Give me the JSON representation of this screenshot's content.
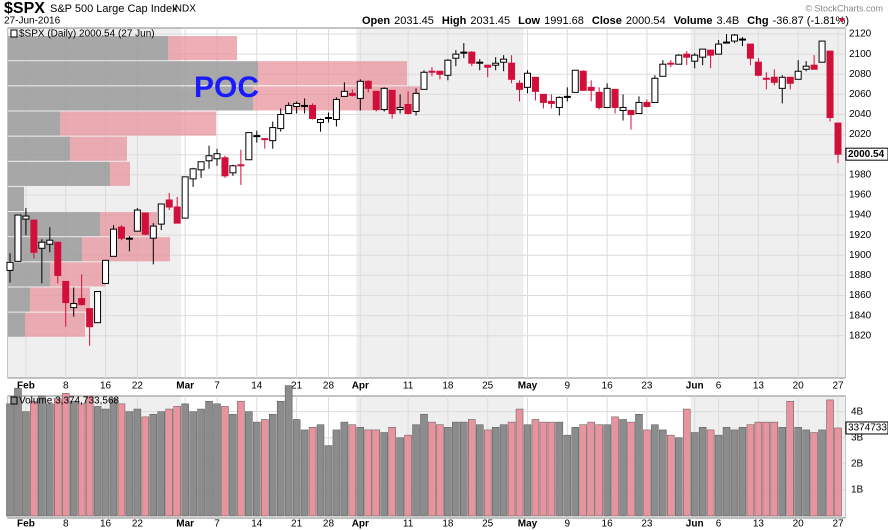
{
  "header": {
    "symbol": "$SPX",
    "name": "S&P 500 Large Cap Index",
    "exchange": "INDX",
    "date": "27-Jun-2016",
    "quote": [
      {
        "label": "Open",
        "value": "2031.45"
      },
      {
        "label": "High",
        "value": "2031.45"
      },
      {
        "label": "Low",
        "value": "1991.68"
      },
      {
        "label": "Close",
        "value": "2000.54"
      },
      {
        "label": "Volume",
        "value": "3.4B"
      },
      {
        "label": "Chg",
        "value": "-36.87 (-1.81%)"
      }
    ],
    "credit": "© StockCharts.com"
  },
  "chart_data": {
    "type": "candlestick",
    "title": "$SPX (Daily) 2000.54 (27 Jun)",
    "annotation": "POC",
    "price_tag": "2000.54",
    "categories": [
      null,
      null,
      "Feb",
      null,
      null,
      null,
      null,
      "8",
      null,
      null,
      null,
      null,
      "16",
      null,
      null,
      null,
      "22",
      null,
      null,
      null,
      null,
      null,
      "Mar",
      null,
      null,
      null,
      "7",
      null,
      null,
      null,
      null,
      "14",
      null,
      null,
      null,
      null,
      "21",
      null,
      null,
      null,
      "28",
      null,
      null,
      null,
      "Apr",
      null,
      null,
      null,
      null,
      null,
      "11",
      null,
      null,
      null,
      null,
      "18",
      null,
      null,
      null,
      null,
      "25",
      null,
      null,
      null,
      null,
      "May",
      null,
      null,
      null,
      null,
      "9",
      null,
      null,
      null,
      null,
      "16",
      null,
      null,
      null,
      null,
      "23",
      null,
      null,
      null,
      null,
      null,
      "Jun",
      null,
      null,
      "6",
      null,
      null,
      null,
      null,
      "13",
      null,
      null,
      null,
      null,
      "20",
      null,
      null,
      null,
      null,
      "27"
    ],
    "open": [
      1885,
      1894,
      1936,
      1935,
      1907,
      1911,
      1913,
      1874,
      1848,
      1857,
      1847,
      1833,
      1872,
      1899,
      1928,
      1916,
      1924,
      1942,
      1917,
      1931,
      1955,
      1948,
      1937,
      1976,
      1985,
      1994,
      1996,
      1997,
      1982,
      1990,
      1995,
      2018,
      2016,
      2014,
      2026,
      2041,
      2048,
      2049,
      2049,
      2032,
      2037,
      2035,
      2058,
      2061,
      2056,
      2073,
      2063,
      2045,
      2064,
      2045,
      2050,
      2043,
      2065,
      2083,
      2083,
      2079,
      2096,
      2101,
      2102,
      2092,
      2089,
      2089,
      2092,
      2091,
      2071,
      2067,
      2077,
      2060,
      2053,
      2047,
      2057,
      2062,
      2083,
      2067,
      2062,
      2047,
      2065,
      2044,
      2044,
      2041,
      2052,
      2052,
      2078,
      2091,
      2090,
      2100,
      2093,
      2097,
      2104,
      2100,
      2111,
      2113,
      2115,
      2110,
      2092,
      2076,
      2077,
      2066,
      2077,
      2075,
      2085,
      2089,
      2092,
      2103,
      2031.45
    ],
    "high": [
      1902,
      1940,
      1947,
      1935,
      1916,
      1928,
      1913,
      1874,
      1868,
      1881,
      1847,
      1864,
      1895,
      1930,
      1930,
      1919,
      1947,
      1942,
      1932,
      1951,
      1962,
      1958,
      1978,
      1987,
      1993,
      2009,
      2006,
      1999,
      1990,
      2005,
      2022,
      2024,
      2016,
      2033,
      2046,
      2052,
      2053,
      2056,
      2051,
      2036,
      2042,
      2057,
      2072,
      2065,
      2075,
      2074,
      2063,
      2067,
      2064,
      2060,
      2063,
      2066,
      2084,
      2087,
      2083,
      2095,
      2104,
      2111,
      2103,
      2095,
      2089,
      2097,
      2099,
      2099,
      2074,
      2084,
      2077,
      2060,
      2060,
      2058,
      2067,
      2084,
      2084,
      2074,
      2067,
      2071,
      2065,
      2060,
      2044,
      2058,
      2055,
      2079,
      2094,
      2094,
      2100,
      2103,
      2101,
      2105,
      2104,
      2114,
      2120,
      2120,
      2117,
      2110,
      2096,
      2082,
      2085,
      2079,
      2077,
      2094,
      2093,
      2099,
      2113,
      2103,
      2031.45
    ],
    "low": [
      1873,
      1894,
      1920,
      1897,
      1872,
      1903,
      1872,
      1829,
      1839,
      1850,
      1810,
      1833,
      1872,
      1899,
      1915,
      1904,
      1924,
      1920,
      1891,
      1925,
      1945,
      1932,
      1937,
      1968,
      1977,
      1986,
      1989,
      1977,
      1979,
      1970,
      1995,
      2012,
      2006,
      2006,
      2023,
      2041,
      2041,
      2041,
      2035,
      2023,
      2032,
      2028,
      2058,
      2058,
      2044,
      2062,
      2043,
      2043,
      2036,
      2041,
      2040,
      2039,
      2065,
      2078,
      2075,
      2074,
      2088,
      2096,
      2088,
      2084,
      2077,
      2084,
      2083,
      2071,
      2053,
      2061,
      2054,
      2046,
      2046,
      2039,
      2053,
      2062,
      2064,
      2053,
      2045,
      2047,
      2041,
      2034,
      2025,
      2041,
      2047,
      2052,
      2078,
      2087,
      2090,
      2089,
      2086,
      2089,
      2086,
      2100,
      2111,
      2111,
      2108,
      2089,
      2078,
      2065,
      2069,
      2051,
      2065,
      2075,
      2083,
      2085,
      2092,
      2033,
      1991.68
    ],
    "close": [
      1893,
      1940,
      1939,
      1903,
      1913,
      1915,
      1880,
      1853,
      1852,
      1851,
      1829,
      1864,
      1895,
      1926,
      1917,
      1917,
      1945,
      1921,
      1929,
      1951,
      1948,
      1932,
      1978,
      1986,
      1993,
      1999,
      2001,
      1979,
      1989,
      1989,
      2022,
      2019,
      2015,
      2027,
      2040,
      2049,
      2051,
      2049,
      2036,
      2035,
      2037,
      2055,
      2063,
      2059,
      2073,
      2066,
      2045,
      2066,
      2041,
      2047,
      2041,
      2061,
      2082,
      2082,
      2080,
      2094,
      2100,
      2102,
      2091,
      2092,
      2087,
      2091,
      2095,
      2075,
      2065,
      2081,
      2063,
      2052,
      2051,
      2057,
      2058,
      2084,
      2064,
      2064,
      2047,
      2066,
      2047,
      2047,
      2040,
      2052,
      2048,
      2076,
      2090,
      2090,
      2099,
      2097,
      2099,
      2105,
      2099,
      2110,
      2112,
      2119,
      2115,
      2096,
      2079,
      2075,
      2072,
      2077,
      2071,
      2083,
      2088,
      2085,
      2113,
      2037,
      2000.54
    ],
    "ylim": [
      1778,
      2126
    ],
    "yticks": [
      1820,
      1840,
      1860,
      1880,
      1900,
      1920,
      1940,
      1960,
      1980,
      2000,
      2020,
      2040,
      2060,
      2080,
      2100,
      2120
    ],
    "up_color": "#000000",
    "down_color": "#d0103a",
    "vbp_edges": [
      2118,
      2093,
      2068,
      2043,
      2018,
      1993,
      1968,
      1943,
      1918,
      1893,
      1868,
      1843,
      1818
    ],
    "vbp_up": [
      160,
      250,
      245,
      52,
      62,
      102,
      16,
      92,
      74,
      42,
      22,
      17
    ],
    "vbp_down": [
      69,
      149,
      167,
      156,
      57,
      20,
      0,
      57,
      88,
      55,
      60,
      60
    ],
    "vbp_up_color": "#9a9a9a",
    "vbp_down_color": "#e8939e",
    "volume_title": "Volume 3,374,733,568",
    "volume_tag": "3374733",
    "volume": [
      4.3,
      4.9,
      4.0,
      4.4,
      4.6,
      4.3,
      4.5,
      4.7,
      4.4,
      4.3,
      4.6,
      4.2,
      4.1,
      4.5,
      4.3,
      4.0,
      4.1,
      3.8,
      3.9,
      4.0,
      4.1,
      4.2,
      4.3,
      4.0,
      4.1,
      4.4,
      4.3,
      4.2,
      3.9,
      4.4,
      4.0,
      3.6,
      3.7,
      3.9,
      4.4,
      5.0,
      3.7,
      3.3,
      3.4,
      3.5,
      2.7,
      3.3,
      3.6,
      3.5,
      3.4,
      3.3,
      3.3,
      3.2,
      3.4,
      3.0,
      3.1,
      3.5,
      3.9,
      3.6,
      3.5,
      3.4,
      3.6,
      3.6,
      3.7,
      3.5,
      3.3,
      3.4,
      3.5,
      3.6,
      4.1,
      3.5,
      3.7,
      3.6,
      3.6,
      3.6,
      3.1,
      3.4,
      3.5,
      3.6,
      3.5,
      3.5,
      3.8,
      3.7,
      3.6,
      3.9,
      3.3,
      3.5,
      3.3,
      3.1,
      3.0,
      4.1,
      3.2,
      3.4,
      3.3,
      3.1,
      3.4,
      3.3,
      3.4,
      3.5,
      3.6,
      3.6,
      3.6,
      3.4,
      4.4,
      3.4,
      3.3,
      3.2,
      3.3,
      4.45,
      3.374733568
    ],
    "vol_ylim": [
      0,
      4.6
    ],
    "vol_yticks": [
      {
        "value": 1,
        "label": "1B"
      },
      {
        "value": 2,
        "label": "2B"
      },
      {
        "value": 3,
        "label": "3B"
      },
      {
        "value": 4,
        "label": "4B"
      }
    ],
    "vol_up_color": "#8c8c8c",
    "vol_down_color": "#e8939e"
  }
}
